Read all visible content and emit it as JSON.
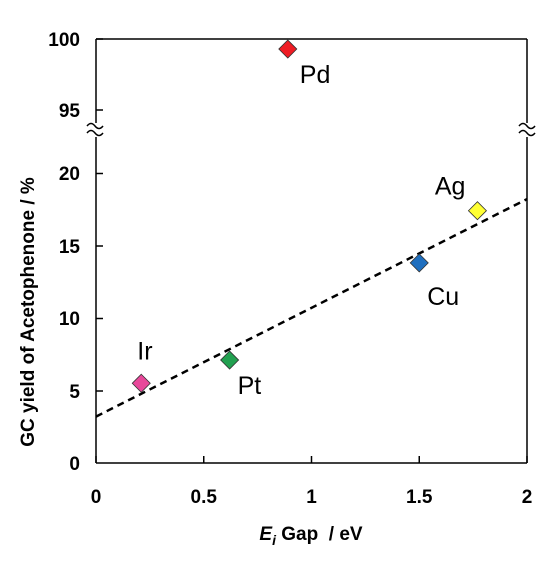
{
  "chart_data": {
    "type": "scatter",
    "xlabel": {
      "main": "E",
      "sub": "i",
      "rest": " Gap  / eV"
    },
    "ylabel": "GC yield of Acetophenone / %",
    "xlim": [
      0,
      2
    ],
    "x_ticks": [
      "0",
      "0.5",
      "1",
      "1.5",
      "2"
    ],
    "y_ticks_lower": [
      "0",
      "5",
      "10",
      "15",
      "20"
    ],
    "y_ticks_upper": [
      "95",
      "100"
    ],
    "ylim_lower": [
      0,
      22
    ],
    "ylim_upper": [
      93,
      100
    ],
    "broken_y_axis": true,
    "grid": false,
    "points": [
      {
        "label": "Pd",
        "x": 0.89,
        "y": 99.3,
        "color": "#ee1c24"
      },
      {
        "label": "Ag",
        "x": 1.77,
        "y": 17.4,
        "color": "#ffff33"
      },
      {
        "label": "Cu",
        "x": 1.5,
        "y": 13.8,
        "color": "#1f6fbf"
      },
      {
        "label": "Pt",
        "x": 0.62,
        "y": 7.1,
        "color": "#22a050"
      },
      {
        "label": "Ir",
        "x": 0.21,
        "y": 5.5,
        "color": "#e8489a"
      }
    ],
    "trendline": {
      "style": "dashed",
      "x": [
        0,
        2
      ],
      "y": [
        3.2,
        18.2
      ]
    }
  }
}
